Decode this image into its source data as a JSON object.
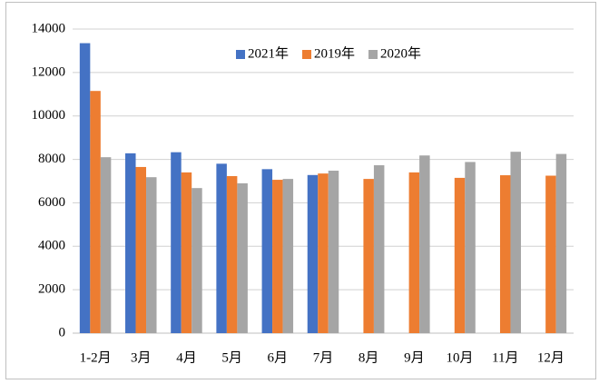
{
  "chart_data": {
    "type": "bar",
    "categories": [
      "1-2月",
      "3月",
      "4月",
      "5月",
      "6月",
      "7月",
      "8月",
      "9月",
      "10月",
      "11月",
      "12月"
    ],
    "series": [
      {
        "name": "2021年",
        "color": "#4472c4",
        "values": [
          13350,
          8280,
          8330,
          7800,
          7550,
          7280,
          null,
          null,
          null,
          null,
          null
        ]
      },
      {
        "name": "2019年",
        "color": "#ed7d31",
        "values": [
          11150,
          7650,
          7400,
          7230,
          7060,
          7350,
          7100,
          7400,
          7150,
          7270,
          7250
        ]
      },
      {
        "name": "2020年",
        "color": "#a5a5a5",
        "values": [
          8100,
          7180,
          6680,
          6900,
          7100,
          7480,
          7730,
          8180,
          7880,
          8350,
          8250
        ]
      }
    ],
    "ylim": [
      0,
      14000
    ],
    "yticks": [
      0,
      2000,
      4000,
      6000,
      8000,
      10000,
      12000,
      14000
    ],
    "grid": true,
    "legend": "top"
  }
}
